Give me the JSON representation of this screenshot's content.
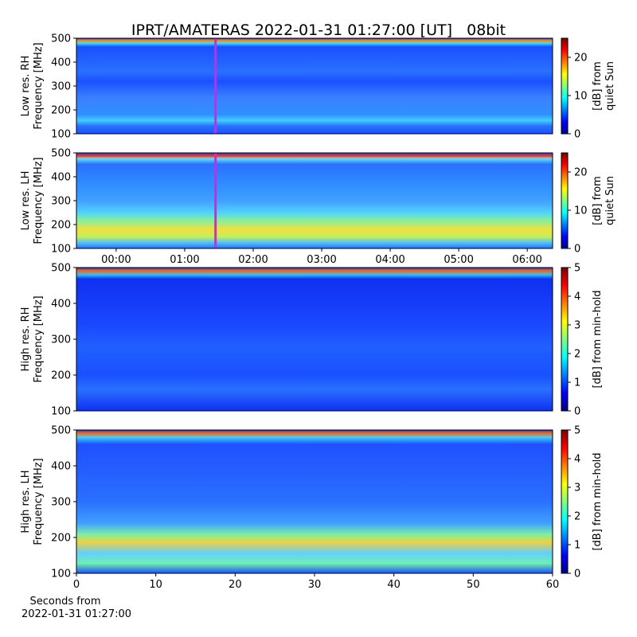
{
  "title": "IPRT/AMATERAS 2022-01-31 01:27:00 [UT]   08bit",
  "chart_data": [
    {
      "type": "heatmap",
      "colormap": "jet",
      "ylabel": [
        "Low res. RH",
        "Frequency [MHz]"
      ],
      "ylim": [
        100,
        500
      ],
      "yticks": [
        100,
        200,
        300,
        400,
        500
      ],
      "xlim": [
        -0.58,
        6.37
      ],
      "marker_x": 1.45,
      "marker_color": "#e020e0",
      "colorbar": {
        "label": [
          "[dB] from",
          "quiet Sun"
        ],
        "lim": [
          0,
          25
        ],
        "ticks": [
          0,
          10,
          20
        ]
      }
    },
    {
      "type": "heatmap",
      "colormap": "jet",
      "ylabel": [
        "Low res. LH",
        "Frequency [MHz]"
      ],
      "ylim": [
        100,
        500
      ],
      "yticks": [
        100,
        200,
        300,
        400,
        500
      ],
      "xlim": [
        -0.58,
        6.37
      ],
      "xticks": [
        {
          "value": 0,
          "label": "00:00"
        },
        {
          "value": 1,
          "label": "01:00"
        },
        {
          "value": 2,
          "label": "02:00"
        },
        {
          "value": 3,
          "label": "03:00"
        },
        {
          "value": 4,
          "label": "04:00"
        },
        {
          "value": 5,
          "label": "05:00"
        },
        {
          "value": 6,
          "label": "06:00"
        }
      ],
      "marker_x": 1.45,
      "marker_color": "#e020e0",
      "colorbar": {
        "label": [
          "[dB] from",
          "quiet Sun"
        ],
        "lim": [
          0,
          25
        ],
        "ticks": [
          0,
          10,
          20
        ]
      }
    },
    {
      "type": "heatmap",
      "colormap": "jet",
      "ylabel": [
        "High res. RH",
        "Frequency [MHz]"
      ],
      "ylim": [
        100,
        500
      ],
      "yticks": [
        100,
        200,
        300,
        400,
        500
      ],
      "xlim": [
        0,
        60
      ],
      "colorbar": {
        "label": [
          "[dB] from min-hold"
        ],
        "lim": [
          0,
          5
        ],
        "ticks": [
          0,
          1,
          2,
          3,
          4,
          5
        ]
      }
    },
    {
      "type": "heatmap",
      "colormap": "jet",
      "ylabel": [
        "High res. LH",
        "Frequency [MHz]"
      ],
      "ylim": [
        100,
        500
      ],
      "yticks": [
        100,
        200,
        300,
        400,
        500
      ],
      "xlim": [
        0,
        60
      ],
      "xticks": [
        0,
        10,
        20,
        30,
        40,
        50,
        60
      ],
      "xlabel": [
        "Seconds from",
        "2022-01-31 01:27:00"
      ],
      "colorbar": {
        "label": [
          "[dB] from min-hold"
        ],
        "lim": [
          0,
          5
        ],
        "ticks": [
          0,
          1,
          2,
          3,
          4,
          5
        ]
      }
    }
  ]
}
